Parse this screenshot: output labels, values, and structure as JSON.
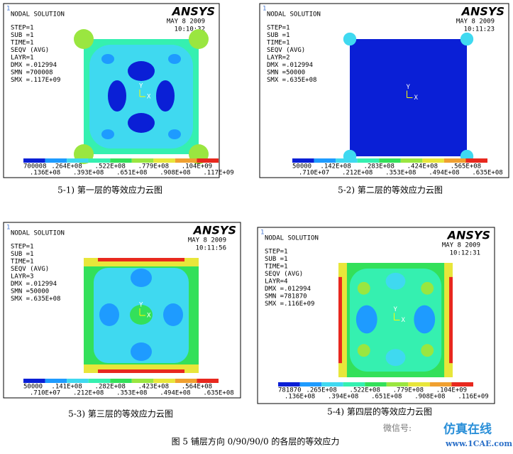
{
  "panels": [
    {
      "window_number": "1",
      "header": "NODAL SOLUTION",
      "logo": "ANSYS",
      "date": "MAY  8 2009",
      "time": "10:10:32",
      "info": [
        "STEP=1",
        "SUB =1",
        "TIME=1",
        "SEQV    (AVG)",
        "LAYR=1",
        "DMX =.012994",
        "SMN =700008",
        "SMX =.117E+09"
      ],
      "triad": {
        "y": "Y",
        "x": "X"
      },
      "legend_top": [
        "700008",
        ".264E+08",
        ".522E+08",
        ".779E+08",
        ".104E+09"
      ],
      "legend_bottom": [
        ".136E+08",
        ".393E+08",
        ".651E+08",
        ".908E+08",
        ".117E+09"
      ],
      "caption": "5-1)  第一层的等效应力云图"
    },
    {
      "window_number": "1",
      "header": "NODAL SOLUTION",
      "logo": "ANSYS",
      "date": "MAY  8 2009",
      "time": "10:11:23",
      "info": [
        "STEP=1",
        "SUB =1",
        "TIME=1",
        "SEQV    (AVG)",
        "LAYR=2",
        "DMX =.012994",
        "SMN =50000",
        "SMX =.635E+08"
      ],
      "triad": {
        "y": "Y",
        "x": "X"
      },
      "legend_top": [
        "50000",
        ".142E+08",
        ".283E+08",
        ".424E+08",
        ".565E+08"
      ],
      "legend_bottom": [
        ".710E+07",
        ".212E+08",
        ".353E+08",
        ".494E+08",
        ".635E+08"
      ],
      "caption": "5-2)  第二层的等效应力云图"
    },
    {
      "window_number": "1",
      "header": "NODAL SOLUTION",
      "logo": "ANSYS",
      "date": "MAY  8 2009",
      "time": "10:11:56",
      "info": [
        "STEP=1",
        "SUB =1",
        "TIME=1",
        "SEQV    (AVG)",
        "LAYR=3",
        "DMX =.012994",
        "SMN =50000",
        "SMX =.635E+08"
      ],
      "triad": {
        "y": "Y",
        "x": "X"
      },
      "legend_top": [
        "50000",
        ".141E+08",
        ".282E+08",
        ".423E+08",
        ".564E+08"
      ],
      "legend_bottom": [
        ".710E+07",
        ".212E+08",
        ".353E+08",
        ".494E+08",
        ".635E+08"
      ],
      "caption": "5-3)  第三层的等效应力云图"
    },
    {
      "window_number": "1",
      "header": "NODAL SOLUTION",
      "logo": "ANSYS",
      "date": "MAY  8 2009",
      "time": "10:12:31",
      "info": [
        "STEP=1",
        "SUB =1",
        "TIME=1",
        "SEQV    (AVG)",
        "LAYR=4",
        "DMX =.012994",
        "SMN =781870",
        "SMX =.116E+09"
      ],
      "triad": {
        "y": "Y",
        "x": "X"
      },
      "legend_top": [
        "781870",
        ".265E+08",
        ".522E+08",
        ".779E+08",
        ".104E+09"
      ],
      "legend_bottom": [
        ".136E+08",
        ".394E+08",
        ".651E+08",
        ".908E+08",
        ".116E+09"
      ],
      "caption": "5-4)  第四层的等效应力云图"
    }
  ],
  "figure_caption": "图 5  铺层方向 0/90/90/0 的各层的等效应力",
  "watermark": {
    "wechat": "微信号:",
    "brand": "仿真在线",
    "site": "www.1CAE.com"
  }
}
